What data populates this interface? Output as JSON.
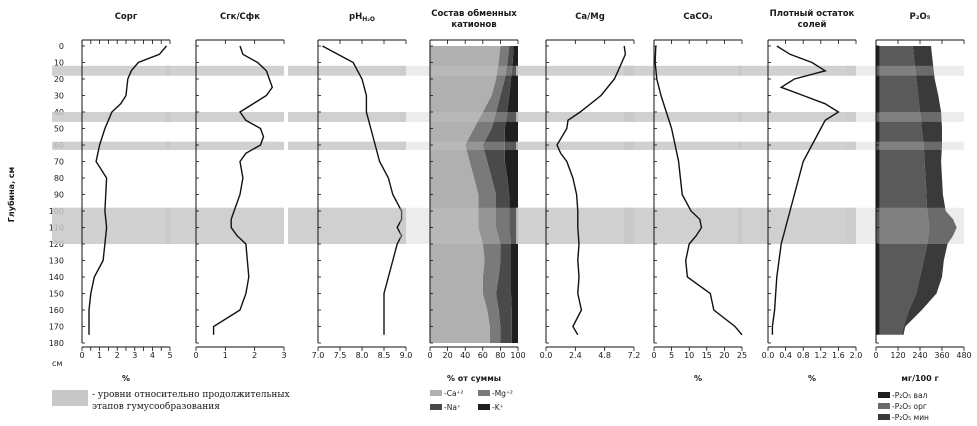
{
  "chart_data": {
    "type": "line",
    "depth_axis": {
      "label": "Глубина, см",
      "unit_label": "см",
      "ticks": [
        0,
        10,
        20,
        30,
        40,
        50,
        60,
        70,
        80,
        90,
        100,
        110,
        120,
        130,
        140,
        150,
        160,
        170,
        180
      ],
      "range": [
        0,
        180
      ],
      "reversed": true
    },
    "highlight_bands": [
      [
        12,
        18
      ],
      [
        40,
        46
      ],
      [
        58,
        63
      ],
      [
        98,
        120
      ]
    ],
    "panels": [
      {
        "title": "Сорг",
        "title2": "",
        "xlabel": "%",
        "ticks": [
          "0",
          "0.5",
          "1",
          "1.5",
          "2",
          "2.5",
          "3",
          "3.5",
          "4",
          "4.5",
          "5"
        ],
        "tick_show": [
          true,
          false,
          true,
          false,
          true,
          false,
          true,
          false,
          true,
          false,
          true
        ],
        "xlim": [
          0,
          5
        ],
        "depths": [
          0,
          5,
          10,
          15,
          20,
          30,
          35,
          40,
          50,
          60,
          70,
          80,
          100,
          110,
          120,
          130,
          140,
          150,
          160,
          170,
          175
        ],
        "values": [
          4.8,
          4.4,
          3.2,
          2.8,
          2.6,
          2.5,
          2.2,
          1.7,
          1.3,
          1.0,
          0.8,
          1.4,
          1.3,
          1.4,
          1.3,
          1.2,
          0.7,
          0.5,
          0.4,
          0.4,
          0.4
        ]
      },
      {
        "title": "Сгк/Сфк",
        "title2": "",
        "xlabel": "",
        "ticks": [
          "0",
          "1",
          "2",
          "3"
        ],
        "tick_show": [
          true,
          true,
          true,
          true
        ],
        "xlim": [
          0,
          3
        ],
        "depths": [
          0,
          5,
          10,
          15,
          20,
          25,
          30,
          40,
          45,
          50,
          55,
          60,
          65,
          70,
          80,
          90,
          100,
          105,
          110,
          115,
          120,
          140,
          150,
          160,
          170,
          175
        ],
        "values": [
          1.5,
          1.6,
          2.1,
          2.4,
          2.5,
          2.6,
          2.4,
          1.5,
          1.7,
          2.2,
          2.3,
          2.2,
          1.7,
          1.5,
          1.6,
          1.5,
          1.3,
          1.2,
          1.2,
          1.4,
          1.7,
          1.8,
          1.7,
          1.5,
          0.6,
          0.6
        ]
      },
      {
        "title": "pH",
        "title_sub": "H₂O",
        "title2": "",
        "xlabel": "",
        "ticks": [
          "7.0",
          "7.5",
          "8.0",
          "8.5",
          "9.0"
        ],
        "tick_show": [
          true,
          true,
          true,
          true,
          true
        ],
        "xlim": [
          7.0,
          9.0
        ],
        "depths": [
          0,
          10,
          15,
          20,
          30,
          40,
          50,
          60,
          70,
          80,
          90,
          100,
          105,
          110,
          115,
          120,
          130,
          140,
          150,
          160,
          170,
          175
        ],
        "values": [
          7.1,
          7.8,
          7.9,
          8.0,
          8.1,
          8.1,
          8.2,
          8.3,
          8.4,
          8.6,
          8.7,
          8.9,
          8.9,
          8.8,
          8.9,
          8.8,
          8.7,
          8.6,
          8.5,
          8.5,
          8.5,
          8.5
        ]
      },
      {
        "title": "Состав обменных",
        "title2": "катионов",
        "xlabel": "% от суммы",
        "ticks": [
          "0",
          "20",
          "40",
          "60",
          "80",
          "100"
        ],
        "tick_show": [
          true,
          true,
          true,
          true,
          true,
          true
        ],
        "xlim": [
          0,
          100
        ],
        "type": "stacked_area",
        "depths": [
          0,
          10,
          20,
          30,
          40,
          50,
          60,
          70,
          80,
          90,
          100,
          110,
          120,
          130,
          140,
          150,
          160,
          170,
          180
        ],
        "series": [
          {
            "name": "-Ca⁺²",
            "color": "#b0b0b0",
            "boundary": [
              80,
              78,
              75,
              70,
              60,
              50,
              40,
              45,
              50,
              55,
              55,
              55,
              60,
              62,
              60,
              60,
              65,
              68,
              68
            ]
          },
          {
            "name": "-Mg⁺²",
            "color": "#7a7a7a",
            "boundary": [
              90,
              88,
              85,
              80,
              75,
              70,
              60,
              65,
              70,
              75,
              75,
              75,
              80,
              80,
              78,
              75,
              78,
              80,
              80
            ]
          },
          {
            "name": "-Na⁺",
            "color": "#4a4a4a",
            "boundary": [
              95,
              94,
              92,
              90,
              88,
              85,
              85,
              85,
              88,
              90,
              90,
              90,
              92,
              92,
              92,
              92,
              93,
              93,
              93
            ]
          },
          {
            "name": "-K⁺",
            "color": "#1f1f1f",
            "boundary": [
              100,
              100,
              100,
              100,
              100,
              100,
              100,
              100,
              100,
              100,
              100,
              100,
              100,
              100,
              100,
              100,
              100,
              100,
              100
            ]
          }
        ]
      },
      {
        "title": "Ca/Mg",
        "title2": "",
        "xlabel": "",
        "ticks": [
          "0.0",
          "2.4",
          "4.8",
          "7.2"
        ],
        "tick_show": [
          true,
          true,
          true,
          true
        ],
        "xlim": [
          0,
          7.2
        ],
        "depths": [
          0,
          5,
          10,
          15,
          20,
          30,
          40,
          45,
          50,
          60,
          65,
          70,
          80,
          90,
          100,
          110,
          120,
          130,
          140,
          150,
          160,
          170,
          175
        ],
        "values": [
          6.4,
          6.5,
          6.2,
          5.9,
          5.6,
          4.5,
          2.8,
          1.8,
          1.7,
          0.9,
          1.2,
          1.7,
          2.2,
          2.5,
          2.6,
          2.6,
          2.7,
          2.6,
          2.7,
          2.6,
          2.9,
          2.2,
          2.6
        ]
      },
      {
        "title": "CaCO₃",
        "title2": "",
        "xlabel": "%",
        "ticks": [
          "0",
          "5",
          "10",
          "15",
          "20",
          "25"
        ],
        "tick_show": [
          true,
          true,
          true,
          true,
          true,
          true
        ],
        "xlim": [
          0,
          25
        ],
        "depths": [
          0,
          10,
          20,
          30,
          40,
          50,
          60,
          70,
          80,
          90,
          100,
          105,
          110,
          115,
          120,
          130,
          140,
          150,
          160,
          170,
          175
        ],
        "values": [
          0.5,
          0.3,
          0.8,
          2.0,
          3.5,
          5.0,
          6.0,
          7.0,
          7.5,
          8.0,
          10.5,
          13.0,
          13.5,
          12.0,
          10.0,
          9.0,
          9.5,
          16.0,
          17.0,
          23.0,
          25.0
        ]
      },
      {
        "title": "Плотный остаток",
        "title2": "солей",
        "xlabel": "%",
        "ticks": [
          "0.0",
          "0.4",
          "0.8",
          "1.2",
          "1.6",
          "2.0"
        ],
        "tick_show": [
          true,
          true,
          true,
          true,
          true,
          true
        ],
        "xlim": [
          0,
          2.0
        ],
        "depths": [
          0,
          5,
          10,
          15,
          20,
          25,
          30,
          35,
          40,
          45,
          50,
          60,
          70,
          80,
          90,
          100,
          110,
          120,
          140,
          160,
          170,
          175
        ],
        "values": [
          0.2,
          0.5,
          1.0,
          1.3,
          0.6,
          0.3,
          0.8,
          1.3,
          1.6,
          1.3,
          1.2,
          1.0,
          0.8,
          0.7,
          0.6,
          0.5,
          0.4,
          0.3,
          0.2,
          0.15,
          0.1,
          0.1
        ]
      },
      {
        "title": "P₂O₅",
        "title2": "",
        "xlabel": "мг/100 г",
        "ticks": [
          "0",
          "120",
          "240",
          "360",
          "480"
        ],
        "tick_show": [
          true,
          true,
          true,
          true,
          true
        ],
        "xlim": [
          0,
          480
        ],
        "type": "stacked_area",
        "depths": [
          0,
          10,
          20,
          30,
          40,
          50,
          60,
          70,
          80,
          90,
          100,
          105,
          110,
          115,
          120,
          130,
          140,
          150,
          160,
          170,
          175
        ],
        "series": [
          {
            "name": "-P₂O₅ вал",
            "color": "#1f1f1f",
            "boundary": [
              20,
              20,
              20,
              20,
              20,
              20,
              20,
              20,
              20,
              20,
              20,
              20,
              20,
              20,
              20,
              20,
              20,
              20,
              20,
              20,
              20
            ]
          },
          {
            "name": "-P₂O₅ орг",
            "color": "#5a5a5a",
            "boundary": [
              200,
              210,
              220,
              230,
              240,
              250,
              260,
              265,
              270,
              275,
              280,
              285,
              290,
              285,
              280,
              260,
              240,
              220,
              180,
              150,
              140
            ]
          },
          {
            "name": "-P₂O₅ мин",
            "color": "#3a3a3a",
            "boundary": [
              300,
              310,
              320,
              340,
              355,
              360,
              360,
              355,
              360,
              365,
              380,
              420,
              440,
              420,
              390,
              370,
              360,
              330,
              250,
              160,
              150
            ]
          }
        ]
      }
    ]
  },
  "legend": {
    "band_text_1": "- уровни относительно продолжительных",
    "band_text_2": "этапов гумусообразования",
    "cations": [
      "-Ca⁺²",
      "-Mg⁺²",
      "-Na⁺",
      "-K⁺"
    ],
    "phosphorus": [
      "-P₂O₅ вал",
      "-P₂O₅ орг",
      "-P₂O₅ мин"
    ]
  },
  "colors": {
    "band": "#c8c8c8",
    "line": "#111111",
    "axis": "#111111"
  }
}
